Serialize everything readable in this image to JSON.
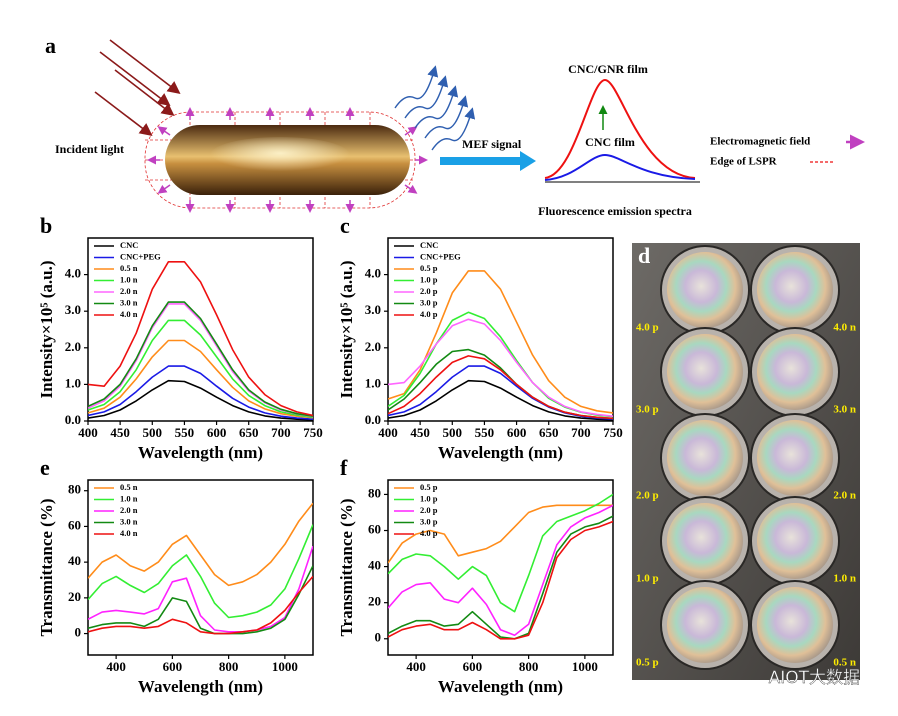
{
  "panel_a": {
    "label": "a",
    "incident_light": "Incident light",
    "mef_signal": "MEF signal",
    "cnc_gnr_film": "CNC/GNR film",
    "cnc_film": "CNC film",
    "em_field": "Electromagnetic field",
    "lspr_edge": "Edge of LSPR",
    "spectra_caption": "Fluorescence emission spectra"
  },
  "chart_data": [
    {
      "type": "line",
      "panel": "b",
      "xlabel": "Wavelength (nm)",
      "ylabel": "Intensity×10⁵ (a.u.)",
      "x": [
        400,
        425,
        450,
        475,
        500,
        525,
        550,
        575,
        600,
        625,
        650,
        675,
        700,
        725,
        750
      ],
      "xlim": [
        400,
        750
      ],
      "xticks": [
        400,
        450,
        500,
        550,
        600,
        650,
        700,
        750
      ],
      "ylim": [
        0,
        5.0
      ],
      "yticks": [
        {
          "value": 0,
          "label": "0.0"
        },
        {
          "value": 1,
          "label": "1.0"
        },
        {
          "value": 2,
          "label": "2.0"
        },
        {
          "value": 3,
          "label": "3.0"
        },
        {
          "value": 4,
          "label": "4.0"
        }
      ],
      "legend": "upper left",
      "series": [
        {
          "name": "CNC",
          "color": "#000000",
          "values": [
            0.08,
            0.15,
            0.3,
            0.55,
            0.85,
            1.1,
            1.08,
            0.9,
            0.65,
            0.42,
            0.25,
            0.14,
            0.08,
            0.05,
            0.03
          ]
        },
        {
          "name": "CNC+PEG",
          "color": "#1a1ae6",
          "values": [
            0.15,
            0.25,
            0.45,
            0.8,
            1.2,
            1.5,
            1.5,
            1.3,
            0.95,
            0.62,
            0.38,
            0.22,
            0.13,
            0.08,
            0.05
          ]
        },
        {
          "name": "0.5 n",
          "color": "#ff8c1a",
          "values": [
            0.22,
            0.35,
            0.65,
            1.15,
            1.75,
            2.2,
            2.2,
            1.9,
            1.4,
            0.92,
            0.55,
            0.33,
            0.2,
            0.13,
            0.09
          ]
        },
        {
          "name": "1.0 n",
          "color": "#33ee33",
          "values": [
            0.3,
            0.45,
            0.8,
            1.4,
            2.2,
            2.75,
            2.75,
            2.35,
            1.75,
            1.15,
            0.7,
            0.42,
            0.25,
            0.16,
            0.1
          ]
        },
        {
          "name": "2.0 n",
          "color": "#ff66ff",
          "values": [
            0.35,
            0.55,
            0.95,
            1.65,
            2.55,
            3.2,
            3.2,
            2.75,
            2.05,
            1.35,
            0.82,
            0.5,
            0.3,
            0.19,
            0.12
          ]
        },
        {
          "name": "3.0 n",
          "color": "#138a13",
          "values": [
            0.4,
            0.6,
            1.0,
            1.7,
            2.6,
            3.25,
            3.25,
            2.8,
            2.1,
            1.4,
            0.85,
            0.52,
            0.32,
            0.2,
            0.13
          ]
        },
        {
          "name": "4.0 n",
          "color": "#ee1111",
          "values": [
            1.0,
            0.95,
            1.5,
            2.4,
            3.6,
            4.35,
            4.35,
            3.8,
            2.9,
            1.95,
            1.2,
            0.72,
            0.42,
            0.25,
            0.15
          ]
        }
      ]
    },
    {
      "type": "line",
      "panel": "c",
      "xlabel": "Wavelength (nm)",
      "ylabel": "Intensity×10⁵ (a.u.)",
      "x": [
        400,
        425,
        450,
        475,
        500,
        525,
        550,
        575,
        600,
        625,
        650,
        675,
        700,
        725,
        750
      ],
      "xlim": [
        400,
        750
      ],
      "xticks": [
        400,
        450,
        500,
        550,
        600,
        650,
        700,
        750
      ],
      "ylim": [
        0,
        5.0
      ],
      "yticks": [
        {
          "value": 0,
          "label": "0.0"
        },
        {
          "value": 1,
          "label": "1.0"
        },
        {
          "value": 2,
          "label": "2.0"
        },
        {
          "value": 3,
          "label": "3.0"
        },
        {
          "value": 4,
          "label": "4.0"
        }
      ],
      "legend": "upper left",
      "series": [
        {
          "name": "CNC",
          "color": "#000000",
          "values": [
            0.08,
            0.15,
            0.3,
            0.55,
            0.85,
            1.1,
            1.08,
            0.9,
            0.65,
            0.42,
            0.25,
            0.14,
            0.08,
            0.05,
            0.03
          ]
        },
        {
          "name": "CNC+PEG",
          "color": "#1a1ae6",
          "values": [
            0.15,
            0.25,
            0.45,
            0.8,
            1.2,
            1.5,
            1.5,
            1.3,
            0.95,
            0.62,
            0.38,
            0.22,
            0.13,
            0.08,
            0.05
          ]
        },
        {
          "name": "0.5 p",
          "color": "#ff8c1a",
          "values": [
            0.6,
            0.75,
            1.4,
            2.4,
            3.5,
            4.1,
            4.1,
            3.6,
            2.7,
            1.8,
            1.1,
            0.65,
            0.4,
            0.28,
            0.22
          ]
        },
        {
          "name": "1.0 p",
          "color": "#33ee33",
          "values": [
            0.4,
            0.7,
            1.3,
            2.1,
            2.75,
            2.97,
            2.8,
            2.3,
            1.65,
            1.05,
            0.62,
            0.38,
            0.24,
            0.16,
            0.12
          ]
        },
        {
          "name": "2.0 p",
          "color": "#ff66ff",
          "values": [
            1.0,
            1.05,
            1.5,
            2.1,
            2.6,
            2.78,
            2.65,
            2.2,
            1.6,
            1.05,
            0.65,
            0.4,
            0.25,
            0.18,
            0.13
          ]
        },
        {
          "name": "3.0 p",
          "color": "#138a13",
          "values": [
            0.3,
            0.6,
            1.05,
            1.55,
            1.9,
            1.95,
            1.8,
            1.45,
            1.0,
            0.65,
            0.4,
            0.24,
            0.15,
            0.1,
            0.07
          ]
        },
        {
          "name": "4.0 p",
          "color": "#ee1111",
          "values": [
            0.2,
            0.4,
            0.75,
            1.2,
            1.6,
            1.78,
            1.7,
            1.4,
            1.0,
            0.65,
            0.4,
            0.24,
            0.15,
            0.1,
            0.07
          ]
        }
      ]
    },
    {
      "type": "line",
      "panel": "e",
      "xlabel": "Wavelength (nm)",
      "ylabel": "Transmittance (%)",
      "x": [
        300,
        350,
        400,
        450,
        500,
        550,
        600,
        650,
        700,
        750,
        800,
        850,
        900,
        950,
        1000,
        1050,
        1100
      ],
      "xlim": [
        300,
        1100
      ],
      "xticks": [
        400,
        600,
        800,
        1000
      ],
      "ylim": [
        -12,
        86
      ],
      "yticks": [
        0,
        20,
        40,
        60,
        80
      ],
      "legend": "upper left",
      "series": [
        {
          "name": "0.5 n",
          "color": "#ff8c1a",
          "values": [
            31,
            40,
            44,
            38,
            35,
            40,
            50,
            55,
            44,
            33,
            27,
            29,
            33,
            40,
            50,
            63,
            73
          ]
        },
        {
          "name": "1.0 n",
          "color": "#33ee33",
          "values": [
            19,
            28,
            32,
            27,
            23,
            28,
            38,
            44,
            32,
            17,
            9,
            10,
            12,
            16,
            25,
            42,
            61
          ]
        },
        {
          "name": "2.0 n",
          "color": "#ff22ff",
          "values": [
            8,
            12,
            13,
            12,
            11,
            14,
            29,
            31,
            10,
            2,
            1,
            1,
            2,
            4,
            9,
            25,
            49
          ]
        },
        {
          "name": "3.0 n",
          "color": "#138a13",
          "values": [
            3,
            5,
            6,
            6,
            4,
            8,
            20,
            18,
            3,
            0,
            0,
            0,
            1,
            3,
            8,
            22,
            38
          ]
        },
        {
          "name": "4.0 n",
          "color": "#ee1111",
          "values": [
            1,
            3,
            4,
            4,
            3,
            4,
            8,
            6,
            1,
            0,
            0,
            1,
            2,
            6,
            13,
            23,
            32
          ]
        }
      ]
    },
    {
      "type": "line",
      "panel": "f",
      "xlabel": "Wavelength (nm)",
      "ylabel": "Transmittance (%)",
      "x": [
        300,
        350,
        400,
        450,
        500,
        550,
        600,
        650,
        700,
        750,
        800,
        850,
        900,
        950,
        1000,
        1050,
        1100
      ],
      "xlim": [
        300,
        1100
      ],
      "xticks": [
        400,
        600,
        800,
        1000
      ],
      "ylim": [
        -9,
        88
      ],
      "yticks": [
        0,
        20,
        40,
        60,
        80
      ],
      "legend": "upper left",
      "series": [
        {
          "name": "0.5 p",
          "color": "#ff8c1a",
          "values": [
            42,
            53,
            58,
            60,
            58,
            46,
            48,
            50,
            54,
            62,
            70,
            73,
            74,
            74,
            74,
            74,
            74
          ]
        },
        {
          "name": "1.0 p",
          "color": "#33ee33",
          "values": [
            36,
            44,
            47,
            46,
            40,
            33,
            40,
            35,
            20,
            15,
            35,
            57,
            65,
            68,
            71,
            75,
            80
          ]
        },
        {
          "name": "2.0 p",
          "color": "#ff22ff",
          "values": [
            17,
            26,
            30,
            31,
            22,
            20,
            28,
            19,
            5,
            2,
            8,
            30,
            52,
            62,
            67,
            70,
            74
          ]
        },
        {
          "name": "3.0 p",
          "color": "#138a13",
          "values": [
            3,
            7,
            10,
            10,
            7,
            8,
            15,
            8,
            1,
            0,
            3,
            25,
            48,
            58,
            62,
            64,
            68
          ]
        },
        {
          "name": "4.0 p",
          "color": "#ee1111",
          "values": [
            1,
            5,
            7,
            8,
            5,
            5,
            9,
            5,
            0,
            0,
            2,
            20,
            45,
            55,
            60,
            62,
            65
          ]
        }
      ]
    }
  ],
  "panel_d": {
    "label": "d",
    "left_labels": [
      "4.0 p",
      "3.0 p",
      "2.0 p",
      "1.0 p",
      "0.5 p"
    ],
    "right_labels": [
      "4.0 n",
      "3.0 n",
      "2.0 n",
      "1.0 n",
      "0.5 n"
    ]
  },
  "watermark": "AIOT大数据"
}
